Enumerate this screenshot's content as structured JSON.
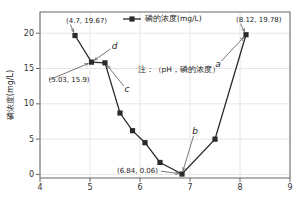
{
  "chart_data": {
    "type": "line",
    "ylabel": "磷浓度(mg/L)",
    "x": [
      4.7,
      5.03,
      5.3,
      5.6,
      5.85,
      6.1,
      6.4,
      6.84,
      7.5,
      8.12
    ],
    "series": [
      {
        "name": "磷的浓度(mg/L)",
        "color": "#2a2a2a",
        "marker": "square",
        "values": [
          19.67,
          15.9,
          15.8,
          8.7,
          6.2,
          4.5,
          1.7,
          0.06,
          5.0,
          19.78
        ]
      }
    ],
    "xlim": [
      4,
      9
    ],
    "ylim": [
      -0.5,
      23
    ],
    "xticks": [
      4,
      5,
      6,
      7,
      8,
      9
    ],
    "yticks": [
      0,
      5,
      10,
      15,
      20
    ],
    "legend": "upper center",
    "annotations": [
      {
        "text": "(4.7, 19.67)",
        "x": 4.7,
        "y": 19.67
      },
      {
        "text": "(5.03, 15.9)",
        "x": 5.03,
        "y": 15.9
      },
      {
        "text": "(6.84, 0.06)",
        "x": 6.84,
        "y": 0.06
      },
      {
        "text": "(8.12, 19.78)",
        "x": 8.12,
        "y": 19.78
      },
      {
        "text": "a",
        "x": 8.12,
        "y": 19.78
      },
      {
        "text": "b",
        "x": 6.84,
        "y": 0.06
      },
      {
        "text": "c",
        "x": 5.3,
        "y": 15.8
      },
      {
        "text": "d",
        "x": 5.03,
        "y": 15.9
      },
      {
        "text": "注：（pH，磷的浓度）"
      }
    ]
  }
}
